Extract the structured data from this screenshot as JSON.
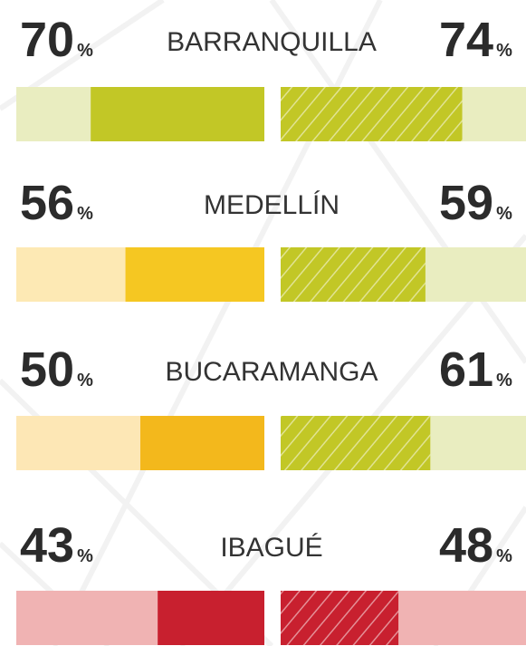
{
  "chart_data": {
    "type": "paired-bar",
    "categories": [
      "BARRANQUILLA",
      "MEDELLÍN",
      "BUCARAMANGA",
      "IBAGUÉ"
    ],
    "unit": "%",
    "xlim": [
      0,
      100
    ],
    "series": [
      {
        "values": [
          70,
          56,
          50,
          43
        ],
        "colors": [
          "#c2c726",
          "#f5c722",
          "#f3b81c",
          "#c8202f"
        ],
        "track_colors": [
          "#e9edc0",
          "#fde9b4",
          "#fde7b5",
          "#f0b3b3"
        ],
        "direction": "left"
      },
      {
        "values": [
          74,
          59,
          61,
          48
        ],
        "colors": [
          "#c2c726",
          "#c2c726",
          "#c2c726",
          "#c8202f"
        ],
        "track_colors": [
          "#e9edc0",
          "#e9edc0",
          "#e9edc0",
          "#f0b3b3"
        ],
        "direction": "right",
        "pattern": "hatch"
      }
    ]
  }
}
